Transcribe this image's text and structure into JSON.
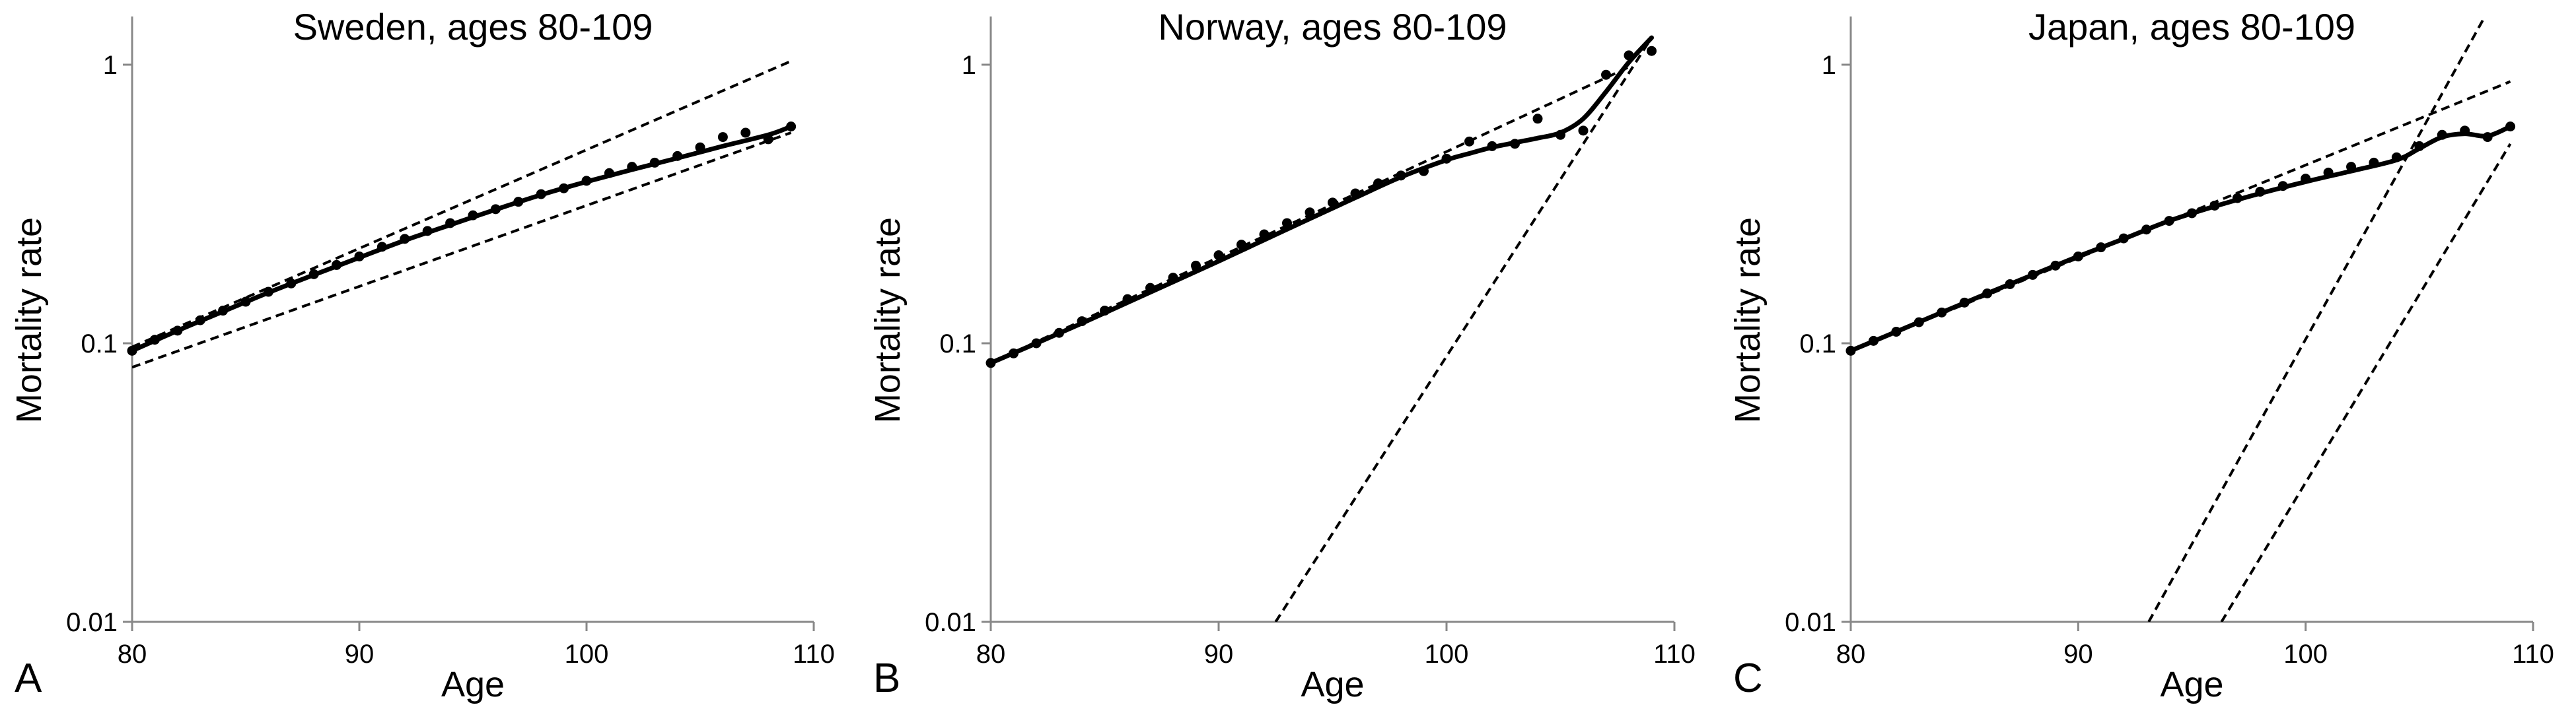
{
  "chart_data": [
    {
      "type": "scatter",
      "panel_letter": "A",
      "title": "Sweden, ages 80-109",
      "xlabel": "Age",
      "ylabel": "Mortality rate",
      "xlim": [
        80,
        110
      ],
      "ylim": [
        0.01,
        1.5
      ],
      "yscale": "log",
      "xticks": [
        "80",
        "90",
        "100",
        "110"
      ],
      "yticks": [
        "0.01",
        "0.1",
        "1"
      ],
      "grid": false,
      "points": {
        "x": [
          80,
          81,
          82,
          83,
          84,
          85,
          86,
          87,
          88,
          89,
          90,
          91,
          92,
          93,
          94,
          95,
          96,
          97,
          98,
          99,
          100,
          101,
          102,
          103,
          104,
          105,
          106,
          107,
          108,
          109
        ],
        "y": [
          0.094,
          0.103,
          0.111,
          0.121,
          0.131,
          0.141,
          0.153,
          0.164,
          0.177,
          0.191,
          0.205,
          0.222,
          0.237,
          0.253,
          0.27,
          0.288,
          0.303,
          0.322,
          0.343,
          0.36,
          0.383,
          0.408,
          0.43,
          0.445,
          0.47,
          0.505,
          0.55,
          0.57,
          0.54,
          0.6
        ]
      },
      "fit_curve": {
        "x": [
          80,
          82,
          84,
          86,
          88,
          90,
          92,
          94,
          96,
          98,
          100,
          102,
          104,
          106,
          108,
          109
        ],
        "y": [
          0.094,
          0.111,
          0.13,
          0.152,
          0.176,
          0.203,
          0.234,
          0.266,
          0.302,
          0.341,
          0.38,
          0.42,
          0.462,
          0.51,
          0.56,
          0.6
        ]
      },
      "reference_lines": [
        {
          "x": [
            80,
            109
          ],
          "y": [
            0.097,
            1.03
          ]
        },
        {
          "x": [
            80,
            109
          ],
          "y": [
            0.082,
            0.57
          ]
        }
      ]
    },
    {
      "type": "scatter",
      "panel_letter": "B",
      "title": "Norway, ages 80-109",
      "xlabel": "Age",
      "ylabel": "Mortality rate",
      "xlim": [
        80,
        110
      ],
      "ylim": [
        0.01,
        1.5
      ],
      "yscale": "log",
      "xticks": [
        "80",
        "90",
        "100",
        "110"
      ],
      "yticks": [
        "0.01",
        "0.1",
        "1"
      ],
      "grid": false,
      "points": {
        "x": [
          80,
          81,
          82,
          83,
          84,
          85,
          86,
          87,
          88,
          89,
          90,
          91,
          92,
          93,
          94,
          95,
          96,
          97,
          98,
          99,
          100,
          101,
          102,
          103,
          104,
          105,
          106,
          107,
          108,
          109
        ],
        "y": [
          0.085,
          0.092,
          0.1,
          0.109,
          0.12,
          0.131,
          0.144,
          0.158,
          0.172,
          0.19,
          0.207,
          0.226,
          0.246,
          0.27,
          0.295,
          0.32,
          0.345,
          0.375,
          0.4,
          0.415,
          0.46,
          0.53,
          0.51,
          0.52,
          0.64,
          0.56,
          0.58,
          0.92,
          1.08,
          1.12
        ]
      },
      "fit_curve": {
        "x": [
          80,
          82,
          84,
          86,
          88,
          90,
          92,
          94,
          96,
          98,
          100,
          101,
          102,
          103,
          104,
          105,
          106,
          107,
          108,
          109
        ],
        "y": [
          0.085,
          0.1,
          0.118,
          0.14,
          0.166,
          0.197,
          0.235,
          0.28,
          0.333,
          0.395,
          0.455,
          0.48,
          0.505,
          0.525,
          0.545,
          0.57,
          0.64,
          0.8,
          1.02,
          1.25
        ]
      },
      "reference_lines": [
        {
          "x": [
            80,
            108
          ],
          "y": [
            0.085,
            0.98
          ]
        },
        {
          "x": [
            92.5,
            109
          ],
          "y": [
            0.01,
            1.25
          ]
        }
      ]
    },
    {
      "type": "scatter",
      "panel_letter": "C",
      "title": "Japan, ages 80-109",
      "xlabel": "Age",
      "ylabel": "Mortality rate",
      "xlim": [
        80,
        110
      ],
      "ylim": [
        0.01,
        1.5
      ],
      "yscale": "log",
      "xticks": [
        "80",
        "90",
        "100",
        "110"
      ],
      "yticks": [
        "0.01",
        "0.1",
        "1"
      ],
      "grid": false,
      "points": {
        "x": [
          80,
          81,
          82,
          83,
          84,
          85,
          86,
          87,
          88,
          89,
          90,
          91,
          92,
          93,
          94,
          95,
          96,
          97,
          98,
          99,
          100,
          101,
          102,
          103,
          104,
          105,
          106,
          107,
          108,
          109
        ],
        "y": [
          0.094,
          0.102,
          0.11,
          0.119,
          0.129,
          0.14,
          0.151,
          0.163,
          0.176,
          0.19,
          0.205,
          0.221,
          0.238,
          0.256,
          0.275,
          0.293,
          0.312,
          0.332,
          0.35,
          0.367,
          0.39,
          0.41,
          0.43,
          0.445,
          0.465,
          0.51,
          0.56,
          0.58,
          0.55,
          0.6
        ]
      },
      "fit_curve": {
        "x": [
          80,
          82,
          84,
          86,
          88,
          90,
          92,
          94,
          96,
          98,
          100,
          102,
          104,
          105,
          106,
          107,
          108,
          109
        ],
        "y": [
          0.094,
          0.11,
          0.129,
          0.151,
          0.176,
          0.205,
          0.237,
          0.275,
          0.31,
          0.345,
          0.38,
          0.415,
          0.455,
          0.5,
          0.55,
          0.565,
          0.555,
          0.6
        ]
      },
      "reference_lines": [
        {
          "x": [
            80,
            109
          ],
          "y": [
            0.094,
            0.87
          ]
        },
        {
          "x": [
            93.1,
            108
          ],
          "y": [
            0.01,
            1.55
          ]
        },
        {
          "x": [
            96.3,
            109
          ],
          "y": [
            0.01,
            0.52
          ]
        }
      ]
    }
  ]
}
